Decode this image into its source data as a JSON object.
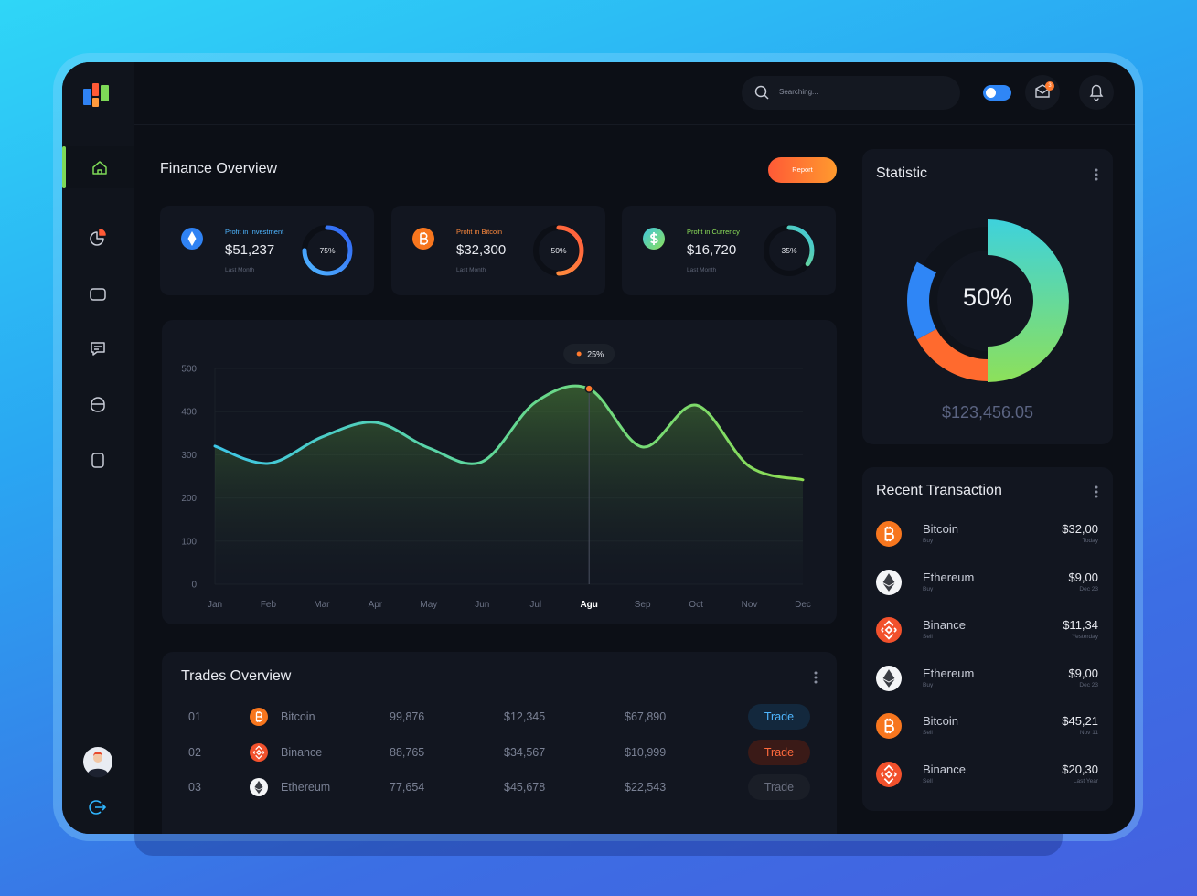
{
  "header": {
    "search_placeholder": "Searching...",
    "mail_badge": "3"
  },
  "finance_overview": {
    "title": "Finance Overview",
    "report_button": "Report",
    "cards": [
      {
        "label": "Profit in Investment",
        "value": "$51,237",
        "period": "Last Month",
        "progress": {
          "value": 75,
          "label": "75%"
        }
      },
      {
        "label": "Profit in Bitcoin",
        "value": "$32,300",
        "period": "Last Month",
        "progress": {
          "value": 50,
          "label": "50%"
        }
      },
      {
        "label": "Profit in Currency",
        "value": "$16,720",
        "period": "Last Month",
        "progress": {
          "value": 35,
          "label": "35%"
        }
      }
    ]
  },
  "chart_data": {
    "type": "line",
    "categories": [
      "Jan",
      "Feb",
      "Mar",
      "Apr",
      "May",
      "Jun",
      "Jul",
      "Agu",
      "Sep",
      "Oct",
      "Nov",
      "Dec"
    ],
    "values": [
      320,
      280,
      341,
      375,
      316,
      284,
      422,
      453,
      318,
      415,
      273,
      242
    ],
    "ylim": [
      0,
      500
    ],
    "yticks": [
      0,
      100,
      200,
      300,
      400,
      500
    ],
    "grid": true,
    "tooltip": {
      "category": "Agu",
      "label": "25%"
    }
  },
  "trades_overview": {
    "title": "Trades Overview",
    "action": "Trade",
    "rows": [
      {
        "number": "01",
        "coin": "Bitcoin",
        "amount": "99,876",
        "price": "$12,345",
        "total": "$67,890"
      },
      {
        "number": "02",
        "coin": "Binance",
        "amount": "88,765",
        "price": "$34,567",
        "total": "$10,999"
      },
      {
        "number": "03",
        "coin": "Ethereum",
        "amount": "77,654",
        "price": "$45,678",
        "total": "$22,543"
      }
    ]
  },
  "statistic": {
    "title": "Statistic",
    "center_label": "50%",
    "segments": [
      50,
      17,
      16
    ],
    "total": "$123,456.05"
  },
  "recent_transactions": {
    "title": "Recent Transaction",
    "items": [
      {
        "coin": "Bitcoin",
        "type": "Buy",
        "amount": "$32,00",
        "date": "Today"
      },
      {
        "coin": "Ethereum",
        "type": "Buy",
        "amount": "$9,00",
        "date": "Dec 23"
      },
      {
        "coin": "Binance",
        "type": "Sell",
        "amount": "$11,34",
        "date": "Yesterday"
      },
      {
        "coin": "Ethereum",
        "type": "Buy",
        "amount": "$9,00",
        "date": "Dec 23"
      },
      {
        "coin": "Bitcoin",
        "type": "Sell",
        "amount": "$45,21",
        "date": "Nov 11"
      },
      {
        "coin": "Binance",
        "type": "Sell",
        "amount": "$20,30",
        "date": "Last Year"
      }
    ]
  }
}
